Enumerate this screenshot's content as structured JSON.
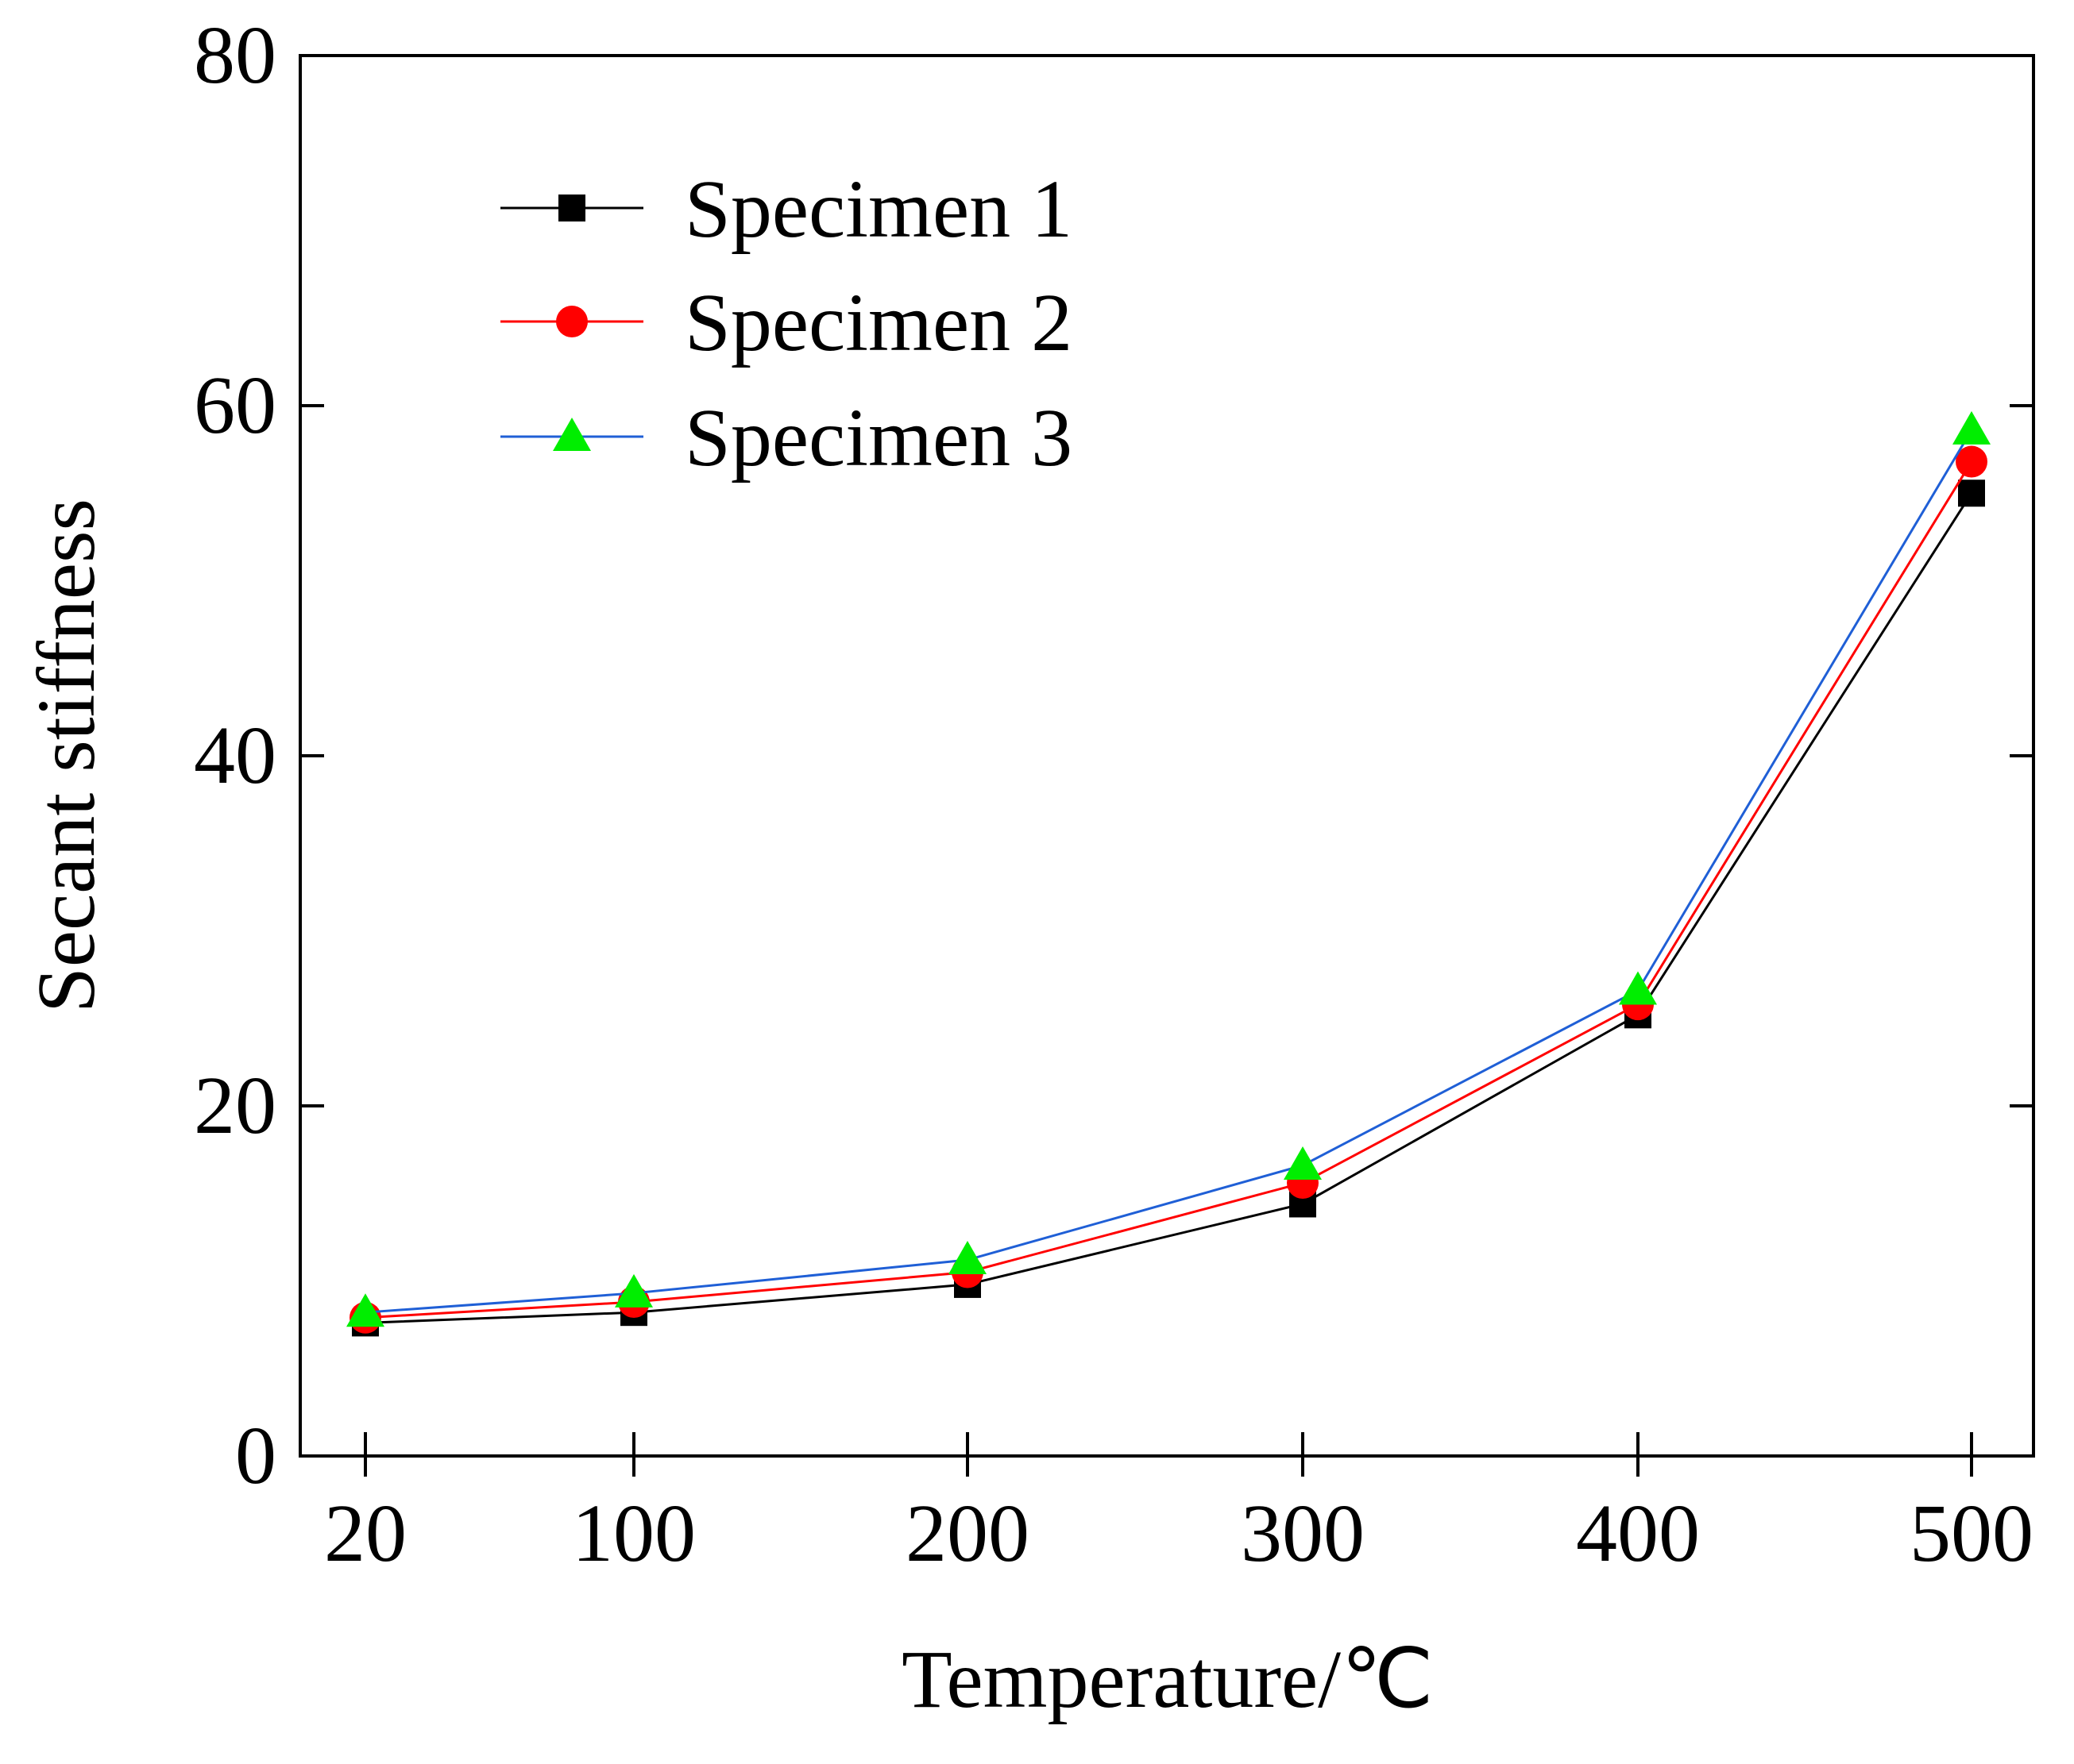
{
  "chart_data": {
    "type": "line",
    "title": "",
    "xlabel": "Temperature/℃",
    "ylabel": "Secant stiffness",
    "categories": [
      "20",
      "100",
      "200",
      "300",
      "400",
      "500"
    ],
    "ylim": [
      0,
      80
    ],
    "yticks": [
      "0",
      "20",
      "40",
      "60",
      "80"
    ],
    "grid": false,
    "legend_position": "top-left",
    "series": [
      {
        "name": "Specimen 1",
        "marker": "square",
        "line_color": "#000000",
        "marker_color": "#000000",
        "values": [
          7.6,
          8.2,
          9.8,
          14.4,
          25.2,
          55.0
        ]
      },
      {
        "name": "Specimen 2",
        "marker": "circle",
        "line_color": "#ff0000",
        "marker_color": "#ff0000",
        "values": [
          7.9,
          8.8,
          10.5,
          15.6,
          25.8,
          56.8
        ]
      },
      {
        "name": "Specimen 3",
        "marker": "triangle",
        "line_color": "#1f5fd6",
        "marker_color": "#00ee00",
        "values": [
          8.2,
          9.3,
          11.2,
          16.6,
          26.6,
          58.6
        ]
      }
    ]
  }
}
